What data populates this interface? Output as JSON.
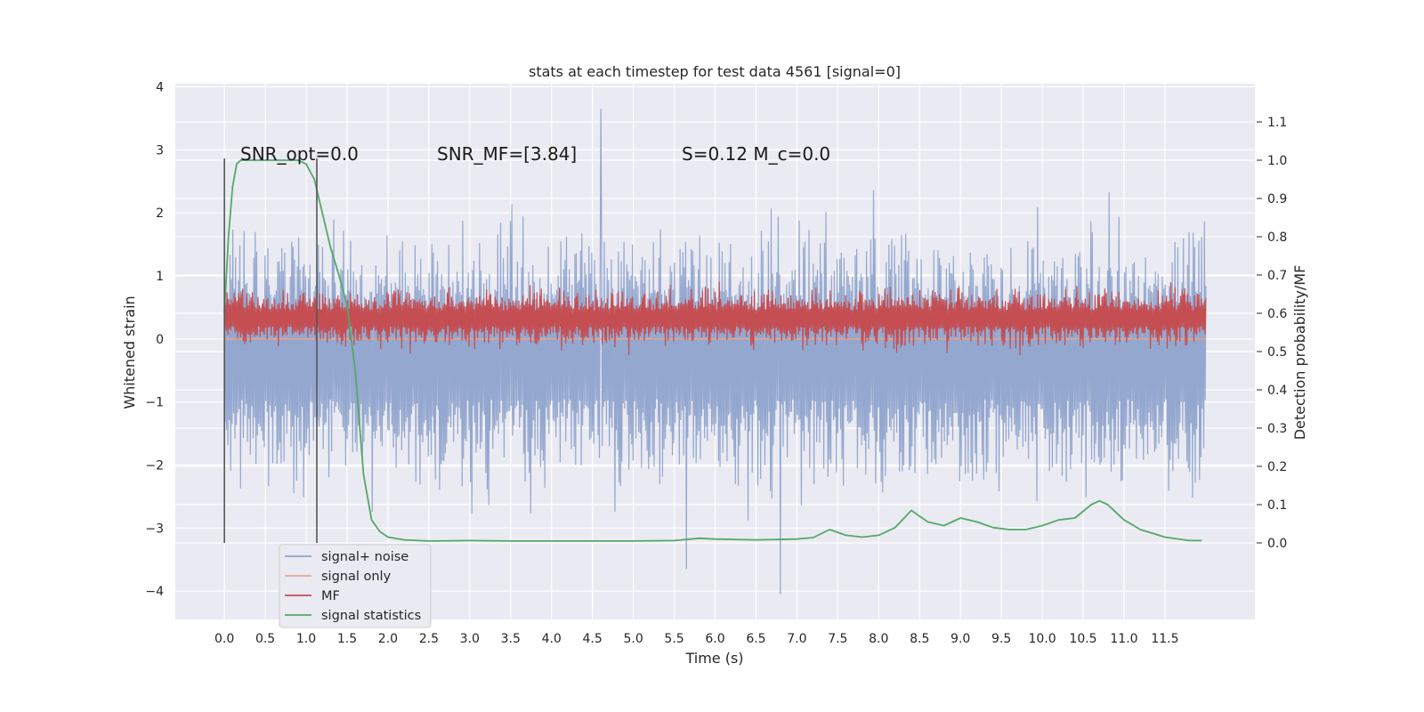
{
  "chart_data": {
    "type": "line",
    "title": "stats at each timestep for test data 4561 [signal=0]",
    "xlabel": "Time (s)",
    "ylabel": "Whitened strain",
    "ylabel_right": "Detection probability/MF",
    "xlim": [
      -0.6,
      12.6
    ],
    "ylim": [
      -4.45,
      4.05
    ],
    "ylim_right": [
      -0.2,
      1.2
    ],
    "x_ticks": [
      "0.0",
      "0.5",
      "1.0",
      "1.5",
      "2.0",
      "2.5",
      "3.0",
      "3.5",
      "4.0",
      "4.5",
      "5.0",
      "5.5",
      "6.0",
      "6.5",
      "7.0",
      "7.5",
      "8.0",
      "8.5",
      "9.0",
      "9.5",
      "10.0",
      "10.5",
      "11.0",
      "11.5"
    ],
    "y_ticks": [
      "4",
      "3",
      "2",
      "1",
      "0",
      "−1",
      "−2",
      "−3",
      "−4"
    ],
    "y_ticks_right": [
      "1.1",
      "1.0",
      "0.9",
      "0.8",
      "0.7",
      "0.6",
      "0.5",
      "0.4",
      "0.3",
      "0.2",
      "0.1",
      "0.0"
    ],
    "grid": true,
    "legend_position": "lower-left",
    "background": "#eaeaf2",
    "series": [
      {
        "name": "signal+ noise",
        "color": "#8fa3cc",
        "axis": "left",
        "x_range": [
          0.0,
          12.0
        ],
        "band_mean": -0.3,
        "band_amplitude": 1.2,
        "peaks": [
          {
            "x": 4.6,
            "y": 3.65
          },
          {
            "x": 5.65,
            "y": -3.65
          },
          {
            "x": 6.8,
            "y": -4.05
          }
        ]
      },
      {
        "name": "signal only",
        "color": "#e8a48a",
        "axis": "left",
        "x": [
          0.0,
          12.0
        ],
        "y": [
          0.0,
          0.0
        ]
      },
      {
        "name": "MF",
        "color": "#c44e52",
        "axis": "left",
        "x_range": [
          0.0,
          12.0
        ],
        "band_mean": 0.33,
        "band_amplitude": 0.32
      },
      {
        "name": "signal statistics",
        "color": "#55a868",
        "axis": "right",
        "x": [
          0.0,
          0.05,
          0.1,
          0.15,
          0.2,
          0.4,
          0.6,
          0.8,
          0.9,
          1.0,
          1.1,
          1.2,
          1.3,
          1.4,
          1.5,
          1.6,
          1.7,
          1.8,
          1.9,
          2.0,
          2.2,
          2.5,
          3.0,
          3.5,
          4.0,
          4.5,
          5.0,
          5.5,
          5.8,
          6.0,
          6.5,
          7.0,
          7.2,
          7.4,
          7.6,
          7.8,
          8.0,
          8.2,
          8.4,
          8.6,
          8.8,
          9.0,
          9.2,
          9.4,
          9.6,
          9.8,
          10.0,
          10.2,
          10.4,
          10.6,
          10.7,
          10.8,
          11.0,
          11.2,
          11.5,
          11.8,
          11.95
        ],
        "y": [
          0.6,
          0.8,
          0.93,
          0.99,
          1.0,
          1.0,
          1.0,
          1.0,
          1.0,
          0.99,
          0.95,
          0.86,
          0.77,
          0.7,
          0.62,
          0.45,
          0.18,
          0.06,
          0.03,
          0.015,
          0.008,
          0.005,
          0.006,
          0.005,
          0.005,
          0.005,
          0.005,
          0.006,
          0.012,
          0.01,
          0.008,
          0.01,
          0.014,
          0.035,
          0.02,
          0.015,
          0.02,
          0.04,
          0.085,
          0.055,
          0.045,
          0.065,
          0.055,
          0.04,
          0.035,
          0.035,
          0.045,
          0.06,
          0.065,
          0.1,
          0.11,
          0.1,
          0.06,
          0.035,
          0.015,
          0.006,
          0.006
        ]
      }
    ],
    "vertical_lines": [
      0.0,
      1.13
    ],
    "annotations": [
      {
        "text": "SNR_opt=0.0",
        "x": 0.2,
        "y": 2.85
      },
      {
        "text": "SNR_MF=[3.84]",
        "x": 2.6,
        "y": 2.85
      },
      {
        "text": "S=0.12   M_c=0.0",
        "x": 5.6,
        "y": 2.85
      }
    ]
  }
}
